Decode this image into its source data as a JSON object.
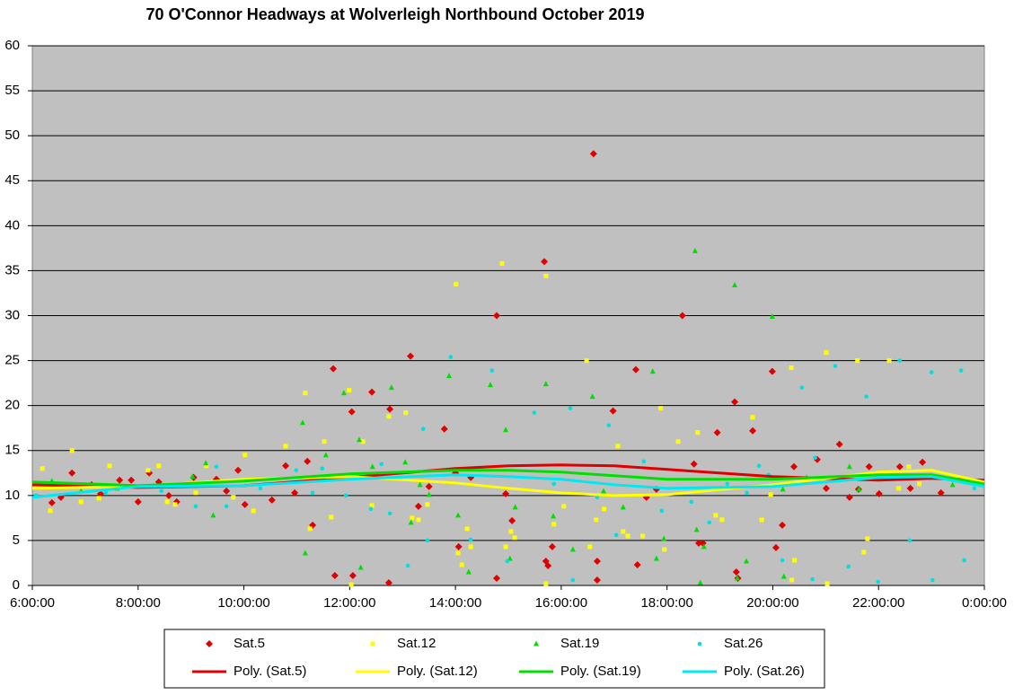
{
  "chart_data": {
    "type": "scatter",
    "title": "70 O'Connor Headways  at Wolverleigh  Northbound  October 2019",
    "xlim": [
      6,
      24
    ],
    "xticks": [
      {
        "value": 6,
        "label": "6:00:00"
      },
      {
        "value": 8,
        "label": "8:00:00"
      },
      {
        "value": 10,
        "label": "10:00:00"
      },
      {
        "value": 12,
        "label": "12:00:00"
      },
      {
        "value": 14,
        "label": "14:00:00"
      },
      {
        "value": 16,
        "label": "16:00:00"
      },
      {
        "value": 18,
        "label": "18:00:00"
      },
      {
        "value": 20,
        "label": "20:00:00"
      },
      {
        "value": 22,
        "label": "22:00:00"
      },
      {
        "value": 24,
        "label": "0:00:00"
      }
    ],
    "ylim": [
      0,
      60
    ],
    "yticks": [
      0,
      5,
      10,
      15,
      20,
      25,
      30,
      35,
      40,
      45,
      50,
      55,
      60
    ],
    "grid": true,
    "legend": "bottom",
    "series": [
      {
        "name": "Sat.5",
        "color": "#e00000",
        "marker": "diamond",
        "x": [
          6.37,
          6.54,
          6.75,
          7.12,
          7.29,
          7.65,
          7.87,
          8.0,
          8.21,
          8.39,
          8.58,
          8.73,
          9.05,
          9.48,
          9.67,
          9.89,
          10.02,
          10.53,
          10.79,
          10.96,
          11.2,
          11.3,
          11.69,
          11.72,
          12.04,
          12.06,
          12.42,
          12.74,
          12.76,
          13.15,
          13.3,
          13.5,
          13.79,
          14.0,
          14.06,
          14.29,
          14.78,
          14.78,
          14.95,
          15.07,
          15.68,
          15.71,
          15.75,
          15.83,
          16.61,
          16.68,
          16.68,
          16.98,
          17.41,
          17.44,
          17.61,
          17.8,
          18.29,
          18.51,
          18.6,
          18.68,
          18.95,
          19.28,
          19.31,
          19.34,
          19.62,
          19.99,
          20.06,
          20.18,
          20.4,
          20.84,
          21.01,
          21.26,
          21.45,
          21.62,
          21.82,
          22.01,
          22.4,
          22.6,
          22.83,
          23.18
        ],
        "values": [
          9.2,
          9.8,
          12.5,
          11.2,
          10.2,
          11.7,
          11.7,
          9.3,
          12.5,
          11.5,
          10,
          9.3,
          12,
          11.8,
          10.5,
          12.8,
          9,
          9.5,
          13.3,
          10.3,
          13.8,
          6.7,
          24.1,
          1.1,
          19.3,
          1.1,
          21.5,
          0.3,
          19.6,
          25.5,
          8.8,
          11,
          17.4,
          12.5,
          4.3,
          12,
          30,
          0.8,
          10.2,
          7.2,
          36,
          2.7,
          2.2,
          4.3,
          48,
          2.7,
          0.6,
          19.4,
          24,
          2.3,
          9.8,
          10.7,
          30,
          13.5,
          4.7,
          4.7,
          17,
          20.4,
          1.5,
          0.8,
          17.2,
          23.8,
          4.2,
          6.7,
          13.2,
          14,
          10.8,
          15.7,
          9.8,
          10.7,
          13.2,
          10.2,
          13.2,
          10.8,
          13.7,
          10.3
        ]
      },
      {
        "name": "Sat.12",
        "color": "#ffff00",
        "marker": "square",
        "x": [
          6.19,
          6.34,
          6.75,
          6.92,
          7.26,
          7.46,
          8.19,
          8.39,
          8.55,
          8.7,
          9.09,
          9.29,
          9.8,
          10.02,
          10.18,
          10.79,
          11.16,
          11.25,
          11.52,
          11.65,
          11.99,
          12.03,
          12.25,
          12.42,
          12.74,
          13.06,
          13.18,
          13.3,
          13.47,
          14.01,
          14.05,
          14.12,
          14.22,
          14.29,
          14.88,
          14.95,
          15.05,
          15.12,
          15.71,
          15.71,
          15.86,
          16.05,
          16.48,
          16.54,
          16.66,
          16.81,
          17.07,
          17.17,
          17.26,
          17.54,
          17.88,
          17.95,
          18.21,
          18.58,
          18.92,
          19.04,
          19.62,
          19.79,
          19.96,
          20.35,
          20.41,
          20.36,
          21.01,
          21.03,
          21.6,
          21.72,
          21.79,
          22.2,
          22.38,
          22.57,
          22.77,
          23.28
        ],
        "values": [
          13,
          8.3,
          15,
          9.3,
          9.7,
          13.3,
          12.8,
          13.3,
          9.3,
          9,
          10.3,
          13.3,
          9.8,
          14.5,
          8.3,
          15.5,
          21.4,
          6.3,
          16,
          7.6,
          21.7,
          0.1,
          16,
          8.9,
          18.8,
          19.2,
          7.5,
          7.3,
          9,
          33.5,
          3.6,
          2.3,
          6.3,
          4.3,
          35.8,
          4.3,
          6,
          5.3,
          34.4,
          0.2,
          6.8,
          8.8,
          25,
          4.3,
          7.3,
          8.5,
          15.5,
          6,
          5.5,
          5.5,
          19.7,
          4,
          16,
          17,
          7.8,
          7.3,
          18.7,
          7.3,
          10.1,
          24.2,
          2.8,
          0.6,
          25.9,
          0.2,
          25,
          3.7,
          5.2,
          25,
          10.8,
          13.2,
          11.3,
          11.9
        ]
      },
      {
        "name": "Sat.19",
        "color": "#00e000",
        "marker": "triangle",
        "x": [
          6.37,
          6.92,
          7.6,
          9.03,
          9.28,
          9.42,
          11.11,
          11.16,
          11.55,
          11.89,
          12.18,
          12.21,
          12.43,
          12.79,
          13.05,
          13.16,
          13.33,
          13.5,
          13.88,
          14.05,
          14.25,
          14.66,
          14.95,
          15.03,
          15.13,
          15.71,
          15.85,
          16.22,
          16.59,
          16.8,
          17.17,
          17.73,
          17.8,
          17.94,
          18.53,
          18.56,
          18.63,
          18.7,
          19.28,
          19.33,
          19.5,
          19.99,
          20.19,
          20.21,
          20.64,
          21.45,
          21.63,
          23.4
        ],
        "values": [
          11.6,
          10.5,
          10.8,
          12.1,
          13.6,
          7.8,
          18.1,
          3.6,
          14.5,
          21.4,
          16.2,
          2,
          13.2,
          22,
          13.7,
          7,
          11.2,
          10.1,
          23.3,
          7.8,
          1.5,
          22.3,
          17.3,
          3,
          8.7,
          22.4,
          7.7,
          4,
          21,
          10.5,
          8.7,
          23.8,
          3,
          5.2,
          37.2,
          6.2,
          0.3,
          4.3,
          33.4,
          0.8,
          2.7,
          29.9,
          10.7,
          1,
          12,
          13.2,
          10.7,
          11.2
        ]
      },
      {
        "name": "Sat.26",
        "color": "#00e0e0",
        "marker": "circle",
        "x": [
          6.07,
          6.71,
          7.39,
          8.44,
          9.09,
          9.48,
          9.67,
          10.31,
          10.99,
          11.3,
          11.48,
          11.93,
          12.4,
          12.6,
          12.76,
          13.1,
          13.39,
          13.47,
          13.91,
          14.29,
          14.69,
          14.98,
          15.49,
          15.86,
          16.17,
          16.22,
          16.68,
          16.9,
          17.04,
          17.56,
          17.9,
          18.46,
          18.8,
          19.14,
          19.51,
          19.74,
          19.92,
          20.18,
          20.55,
          20.75,
          20.8,
          21.18,
          21.43,
          21.77,
          21.99,
          22.4,
          22.59,
          23.0,
          23.02,
          23.56,
          23.62,
          23.81
        ],
        "values": [
          10,
          11.2,
          10.3,
          10.5,
          8.8,
          13.2,
          8.8,
          10.8,
          12.8,
          10.3,
          13,
          10,
          8.5,
          13.5,
          8,
          2.2,
          17.4,
          5,
          25.4,
          5.1,
          23.9,
          2.7,
          19.2,
          11.3,
          19.7,
          0.6,
          9.8,
          17.8,
          5.6,
          13.8,
          8.3,
          9.3,
          7,
          11.3,
          10.3,
          13.3,
          12.3,
          2.8,
          22,
          0.7,
          14.2,
          24.4,
          2.1,
          21,
          0.4,
          25,
          5,
          23.7,
          0.6,
          23.9,
          2.8,
          10.8
        ]
      },
      {
        "name": "Poly. (Sat.5)",
        "color": "#e00000",
        "style": "line",
        "x": [
          6,
          8,
          10,
          12,
          14,
          15,
          16,
          17,
          18,
          20,
          22,
          23,
          24
        ],
        "values": [
          11.2,
          10.9,
          11.1,
          12,
          13,
          13.3,
          13.4,
          13.3,
          12.9,
          12.1,
          11.7,
          11.9,
          11.7
        ]
      },
      {
        "name": "Poly. (Sat.12)",
        "color": "#ffff00",
        "style": "line",
        "x": [
          6,
          8,
          10,
          12,
          14,
          15,
          16,
          17,
          18,
          20,
          22,
          23,
          24
        ],
        "values": [
          10.8,
          11,
          11.8,
          12.1,
          11.4,
          10.8,
          10.3,
          10,
          10.1,
          11.2,
          12.6,
          12.8,
          11.5
        ]
      },
      {
        "name": "Poly. (Sat.19)",
        "color": "#00e000",
        "style": "line",
        "x": [
          6,
          8,
          10,
          12,
          14,
          15,
          16,
          17,
          18,
          20,
          22,
          23,
          24
        ],
        "values": [
          11.5,
          11.1,
          11.6,
          12.4,
          12.8,
          12.8,
          12.6,
          12.2,
          11.8,
          11.8,
          12.3,
          12.3,
          11.3
        ]
      },
      {
        "name": "Poly. (Sat.26)",
        "color": "#00e8f0",
        "style": "line",
        "x": [
          6,
          8,
          10,
          12,
          14,
          15,
          16,
          17,
          18,
          20,
          22,
          23,
          24
        ],
        "values": [
          9.8,
          11,
          11.1,
          11.8,
          12.3,
          12.1,
          11.8,
          11.2,
          10.8,
          11,
          12,
          12.1,
          11
        ]
      }
    ]
  }
}
